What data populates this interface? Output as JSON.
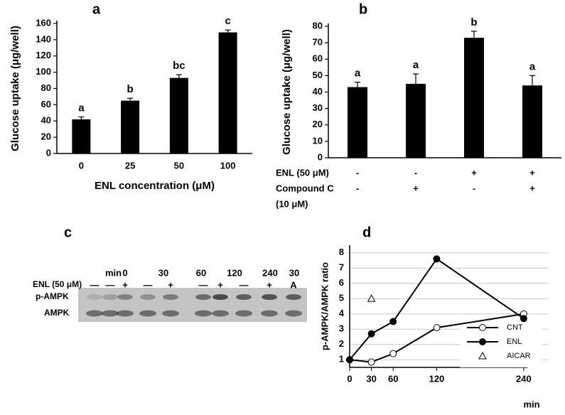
{
  "chart_data": [
    {
      "type": "bar",
      "panel": "a",
      "ylabel": "Glucose uptake (μg/well)",
      "xlabel": "ENL  concentration (μM)",
      "categories": [
        "0",
        "25",
        "50",
        "100"
      ],
      "values": [
        42,
        65,
        93,
        149
      ],
      "errors": [
        3,
        3,
        4,
        3
      ],
      "letters": [
        "a",
        "b",
        "bc",
        "c"
      ],
      "color": "#000000",
      "ylim": [
        0,
        160
      ],
      "yticks": [
        0,
        20,
        40,
        60,
        80,
        100,
        120,
        140,
        160
      ]
    },
    {
      "type": "bar",
      "panel": "b",
      "ylabel": "Glucose uptake (μg/well)",
      "values": [
        43,
        45,
        73,
        44
      ],
      "errors": [
        3,
        6,
        4,
        6
      ],
      "letters": [
        "a",
        "a",
        "b",
        "a"
      ],
      "color": "#000000",
      "conditions": [
        {
          "label": "ENL (50 μM)",
          "signs": [
            "-",
            "-",
            "+",
            "+"
          ]
        },
        {
          "label": "Compound C",
          "signs": [
            "-",
            "+",
            "-",
            "+"
          ]
        }
      ],
      "condition_note": "(10 μM)",
      "ylim": [
        0,
        80
      ],
      "yticks": [
        0,
        10,
        20,
        30,
        40,
        50,
        60,
        70,
        80
      ]
    },
    {
      "type": "line",
      "panel": "d",
      "ylabel": "p-AMPK/AMPK ratio",
      "xlabel": "min",
      "x": [
        0,
        30,
        60,
        120,
        240
      ],
      "series": [
        {
          "name": "CNT",
          "color": "#000000",
          "marker": "open-circle",
          "values": [
            1,
            0.85,
            1.4,
            3.1,
            4.0
          ]
        },
        {
          "name": "ENL",
          "color": "#000000",
          "marker": "filled-circle",
          "values": [
            1,
            2.7,
            3.5,
            7.6,
            3.7
          ]
        },
        {
          "name": "AICAR",
          "color": "#000000",
          "marker": "open-triangle",
          "values": [
            null,
            5.0,
            null,
            null,
            null
          ]
        }
      ],
      "xlim": [
        0,
        245
      ],
      "xticks": [
        0,
        30,
        60,
        120,
        240
      ],
      "ylim": [
        0.5,
        8.5
      ],
      "yticks": [
        1,
        2,
        3,
        4,
        5,
        6,
        7,
        8
      ],
      "grid": true,
      "legend": "right"
    }
  ],
  "blot": {
    "panel": "c",
    "time_label": "min",
    "times": [
      "0",
      "30",
      "60",
      "120",
      "240",
      "30"
    ],
    "treatment_label": "ENL (50 μM)",
    "treatments": [
      "—",
      "—",
      "+",
      "—",
      "+",
      "—",
      "+",
      "—",
      "+",
      "A"
    ],
    "rows": [
      "p-AMPK",
      "AMPK"
    ]
  }
}
